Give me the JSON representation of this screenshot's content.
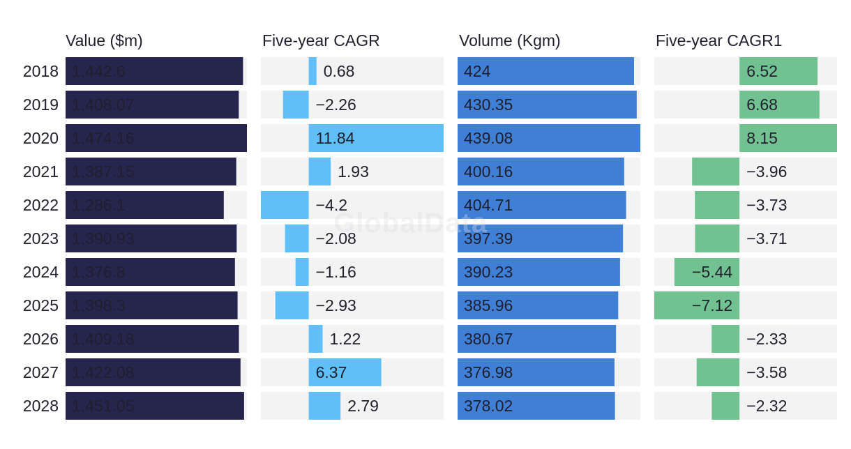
{
  "watermark": "GlobalData",
  "chart_data": {
    "type": "bar",
    "categories": [
      "2018",
      "2019",
      "2020",
      "2021",
      "2022",
      "2023",
      "2024",
      "2025",
      "2026",
      "2027",
      "2028"
    ],
    "panels": [
      {
        "name": "Value ($m)",
        "color": "#25254d",
        "text_color": "#ffffff",
        "kind": "positive",
        "max": 1474.16,
        "values": [
          1442.6,
          1408.07,
          1474.16,
          1387.15,
          1286.1,
          1390.93,
          1376.8,
          1398.3,
          1409.18,
          1422.08,
          1451.05
        ],
        "labels": [
          "1,442.6",
          "1,408.07",
          "1,474.16",
          "1,387.15",
          "1,286.1",
          "1,390.93",
          "1,376.8",
          "1,398.3",
          "1,409.18",
          "1,422.08",
          "1,451.05"
        ]
      },
      {
        "name": "Five-year CAGR",
        "color": "#60bff7",
        "text_color": "#1f1f2e",
        "kind": "diverging",
        "neg_max": 4.2,
        "pos_max": 11.84,
        "values": [
          0.68,
          -2.26,
          11.84,
          1.93,
          -4.2,
          -2.08,
          -1.16,
          -2.93,
          1.22,
          6.37,
          2.79
        ],
        "labels": [
          "0.68",
          "−2.26",
          "11.84",
          "1.93",
          "−4.2",
          "−2.08",
          "−1.16",
          "−2.93",
          "1.22",
          "6.37",
          "2.79"
        ]
      },
      {
        "name": "Volume (Kgm)",
        "color": "#3f7fd6",
        "text_color": "#ffffff",
        "kind": "positive",
        "max": 439.08,
        "values": [
          424,
          430.35,
          439.08,
          400.16,
          404.71,
          397.39,
          390.23,
          385.96,
          380.67,
          376.98,
          378.02
        ],
        "labels": [
          "424",
          "430.35",
          "439.08",
          "400.16",
          "404.71",
          "397.39",
          "390.23",
          "385.96",
          "380.67",
          "376.98",
          "378.02"
        ]
      },
      {
        "name": "Five-year CAGR1",
        "color": "#72c291",
        "text_color": "#1f1f2e",
        "kind": "diverging",
        "neg_max": 7.12,
        "pos_max": 8.15,
        "values": [
          6.52,
          6.68,
          8.15,
          -3.96,
          -3.73,
          -3.71,
          -5.44,
          -7.12,
          -2.33,
          -3.58,
          -2.32
        ],
        "labels": [
          "6.52",
          "6.68",
          "8.15",
          "−3.96",
          "−3.73",
          "−3.71",
          "−5.44",
          "−7.12",
          "−2.33",
          "−3.58",
          "−2.32"
        ]
      }
    ]
  }
}
